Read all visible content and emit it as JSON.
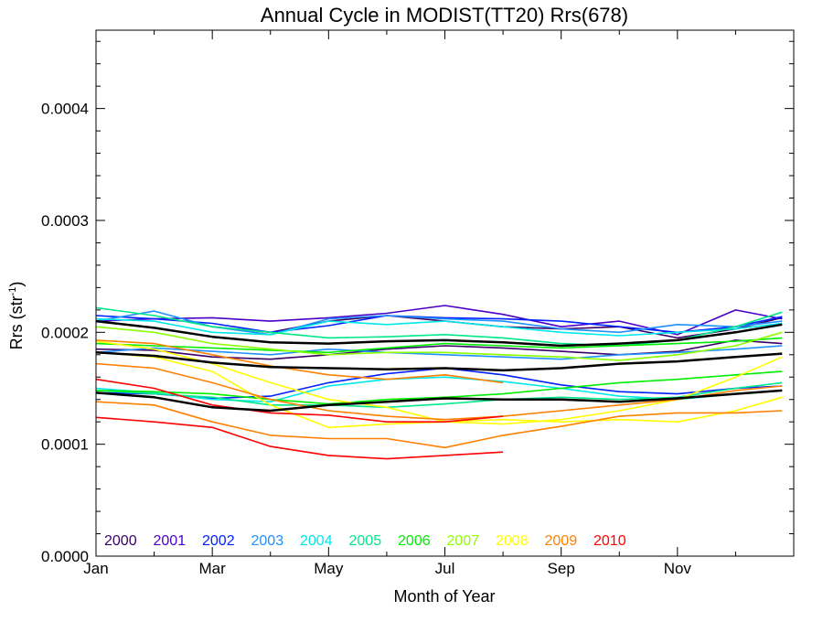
{
  "chart_data": {
    "type": "line",
    "title": "Annual Cycle in MODIST(TT20) Rrs(678)",
    "xlabel": "Month of Year",
    "ylabel_main": "Rrs (str",
    "ylabel_sup": "-1",
    "ylabel_close": ")",
    "xlim": [
      0,
      12
    ],
    "ylim": [
      0,
      0.00047
    ],
    "x_ticks": [
      {
        "v": 0,
        "label": "Jan"
      },
      {
        "v": 2,
        "label": "Mar"
      },
      {
        "v": 4,
        "label": "May"
      },
      {
        "v": 6,
        "label": "Jul"
      },
      {
        "v": 8,
        "label": "Sep"
      },
      {
        "v": 10,
        "label": "Nov"
      }
    ],
    "y_ticks": [
      {
        "v": 0,
        "label": "0.0000"
      },
      {
        "v": 0.0001,
        "label": "0.0001"
      },
      {
        "v": 0.0002,
        "label": "0.0002"
      },
      {
        "v": 0.0003,
        "label": "0.0003"
      },
      {
        "v": 0.0004,
        "label": "0.0004"
      }
    ],
    "legend": [
      {
        "name": "2000",
        "color": "#3a0066"
      },
      {
        "name": "2001",
        "color": "#4b00c8"
      },
      {
        "name": "2002",
        "color": "#0020ff"
      },
      {
        "name": "2003",
        "color": "#1e90ff"
      },
      {
        "name": "2004",
        "color": "#00e8e8"
      },
      {
        "name": "2005",
        "color": "#00e88a"
      },
      {
        "name": "2006",
        "color": "#00ee00"
      },
      {
        "name": "2007",
        "color": "#8cff00"
      },
      {
        "name": "2008",
        "color": "#ffff00"
      },
      {
        "name": "2009",
        "color": "#ff8000"
      },
      {
        "name": "2010",
        "color": "#ff0000"
      }
    ],
    "series": [
      {
        "color": "#3a0066",
        "x": [
          2,
          3,
          4,
          5,
          6,
          7,
          8,
          9,
          10,
          11,
          11.8
        ],
        "values": [
          0.000205,
          0.0002,
          0.00021,
          0.000215,
          0.00021,
          0.000205,
          0.000203,
          0.000205,
          0.000195,
          0.000203,
          0.000213
        ]
      },
      {
        "color": "#3a0066",
        "x": [
          0,
          1,
          2,
          3,
          4,
          5,
          6,
          7,
          8,
          9,
          10,
          11,
          11.8
        ],
        "values": [
          0.000185,
          0.000184,
          0.000178,
          0.000176,
          0.00018,
          0.000185,
          0.000188,
          0.000186,
          0.000183,
          0.00018,
          0.000183,
          0.000193,
          0.00019
        ]
      },
      {
        "color": "#4b00c8",
        "x": [
          0,
          1,
          2,
          3,
          4,
          5,
          6,
          7,
          8,
          9,
          10,
          11,
          11.8
        ],
        "values": [
          0.00021,
          0.000212,
          0.000213,
          0.00021,
          0.000213,
          0.000217,
          0.000224,
          0.000216,
          0.000205,
          0.00021,
          0.000198,
          0.00022,
          0.000212
        ]
      },
      {
        "color": "#0020ff",
        "x": [
          0,
          1,
          2,
          3,
          4,
          5,
          6,
          7,
          8,
          9,
          10,
          11,
          11.8
        ],
        "values": [
          0.000215,
          0.000212,
          0.000208,
          0.0002,
          0.000206,
          0.000215,
          0.000213,
          0.000212,
          0.00021,
          0.000205,
          0.0002,
          0.000205,
          0.000214
        ]
      },
      {
        "color": "#0020ff",
        "x": [
          0,
          1,
          2,
          3,
          4,
          5,
          6,
          7,
          8,
          9,
          10,
          11,
          11.8
        ],
        "values": [
          0.000146,
          0.000145,
          0.000141,
          0.000143,
          0.000155,
          0.000163,
          0.000168,
          0.000162,
          0.000153,
          0.000147,
          0.000145,
          0.00015,
          0.000152
        ]
      },
      {
        "color": "#1e90ff",
        "x": [
          0,
          1,
          2,
          3,
          4,
          5,
          6,
          7,
          8,
          9,
          10,
          11,
          11.8
        ],
        "values": [
          0.00021,
          0.000219,
          0.000205,
          0.000198,
          0.000212,
          0.000215,
          0.000212,
          0.00021,
          0.000203,
          0.0002,
          0.000207,
          0.000205,
          0.00021
        ]
      },
      {
        "color": "#1e90ff",
        "x": [
          0,
          1,
          2,
          3,
          4,
          5,
          6,
          7,
          8,
          9,
          10,
          11,
          11.8
        ],
        "values": [
          0.000182,
          0.000186,
          0.000183,
          0.00018,
          0.000185,
          0.000182,
          0.00018,
          0.000178,
          0.000176,
          0.00018,
          0.000182,
          0.000185,
          0.000188
        ]
      },
      {
        "color": "#00e8e8",
        "x": [
          0,
          1,
          2,
          3,
          4,
          5,
          6,
          7,
          8,
          9,
          10,
          11,
          11.8
        ],
        "values": [
          0.000212,
          0.00021,
          0.0002,
          0.000198,
          0.00021,
          0.000207,
          0.00021,
          0.000205,
          0.0002,
          0.000197,
          0.0002,
          0.000203,
          0.000208
        ]
      },
      {
        "color": "#00e8e8",
        "x": [
          0,
          1,
          2,
          3,
          4,
          5,
          6,
          7,
          8,
          9,
          10,
          11,
          11.8
        ],
        "values": [
          0.00015,
          0.000146,
          0.00014,
          0.000138,
          0.000152,
          0.000158,
          0.00016,
          0.000156,
          0.00015,
          0.000143,
          0.00014,
          0.000145,
          0.000148
        ]
      },
      {
        "color": "#00e88a",
        "x": [
          0,
          1,
          2,
          3,
          4,
          5,
          6,
          7,
          8,
          9,
          10,
          11,
          11.8
        ],
        "values": [
          0.000222,
          0.000215,
          0.000205,
          0.0002,
          0.000195,
          0.000196,
          0.000198,
          0.000195,
          0.00019,
          0.000188,
          0.000193,
          0.000205,
          0.000218
        ]
      },
      {
        "color": "#00e88a",
        "x": [
          0,
          1,
          2,
          3,
          4,
          5,
          6,
          7,
          8,
          9,
          10,
          11,
          11.8
        ],
        "values": [
          0.000148,
          0.000145,
          0.000142,
          0.000135,
          0.000135,
          0.000133,
          0.000136,
          0.00014,
          0.000142,
          0.00014,
          0.000142,
          0.00015,
          0.000155
        ]
      },
      {
        "color": "#00ee00",
        "x": [
          0,
          1,
          2,
          3,
          4,
          5,
          6,
          7,
          8,
          9,
          10,
          11,
          11.8
        ],
        "values": [
          0.00019,
          0.000188,
          0.000186,
          0.000184,
          0.000182,
          0.000186,
          0.00019,
          0.000188,
          0.000186,
          0.000188,
          0.00019,
          0.000192,
          0.000195
        ]
      },
      {
        "color": "#00ee00",
        "x": [
          0,
          1,
          2,
          3,
          4,
          5,
          6,
          7,
          8,
          9,
          10,
          11,
          11.8
        ],
        "values": [
          0.000148,
          0.000147,
          0.000145,
          0.00014,
          0.000136,
          0.00014,
          0.000142,
          0.000145,
          0.00015,
          0.000155,
          0.000158,
          0.000162,
          0.000165
        ]
      },
      {
        "color": "#8cff00",
        "x": [
          0,
          1,
          2,
          3,
          4,
          5,
          6,
          7,
          8,
          9,
          10,
          11,
          11.8
        ],
        "values": [
          0.000205,
          0.0002,
          0.00019,
          0.000185,
          0.00018,
          0.000182,
          0.000182,
          0.00018,
          0.000178,
          0.000175,
          0.00018,
          0.000188,
          0.0002
        ]
      },
      {
        "color": "#ffff00",
        "x": [
          0,
          1,
          2,
          3,
          4,
          5,
          6,
          7,
          8,
          9,
          10,
          11,
          11.8
        ],
        "values": [
          0.000192,
          0.000185,
          0.000172,
          0.000155,
          0.00014,
          0.000133,
          0.00012,
          0.000122,
          0.00012,
          0.000122,
          0.00012,
          0.00013,
          0.000142
        ]
      },
      {
        "color": "#ffff00",
        "x": [
          0,
          1,
          2,
          3,
          4,
          5,
          6,
          7,
          8,
          9,
          10,
          11,
          11.8
        ],
        "values": [
          0.000182,
          0.000178,
          0.000165,
          0.000135,
          0.000115,
          0.000118,
          0.00012,
          0.000118,
          0.000122,
          0.00013,
          0.00014,
          0.00016,
          0.000178
        ]
      },
      {
        "color": "#ff8000",
        "x": [
          0,
          1,
          2,
          3,
          4,
          5,
          6,
          7,
          8,
          9,
          10,
          11,
          11.8
        ],
        "values": [
          0.000172,
          0.000168,
          0.000155,
          0.00014,
          0.00013,
          0.000125,
          0.000122,
          0.000125,
          0.00013,
          0.000135,
          0.00014,
          0.000148,
          0.000152
        ]
      },
      {
        "color": "#ff8000",
        "x": [
          0,
          1,
          2,
          3,
          4,
          5,
          6,
          7,
          8,
          9,
          10,
          11,
          11.8
        ],
        "values": [
          0.000138,
          0.000135,
          0.00012,
          0.000108,
          0.000105,
          0.000105,
          9.7e-05,
          0.000108,
          0.000116,
          0.000125,
          0.000128,
          0.000128,
          0.00013
        ]
      },
      {
        "color": "#ff8000",
        "x": [
          0,
          1,
          2,
          3,
          4,
          5,
          6,
          7
        ],
        "values": [
          0.000193,
          0.00019,
          0.00018,
          0.00017,
          0.000162,
          0.000158,
          0.000162,
          0.000155
        ]
      },
      {
        "color": "#ff0000",
        "x": [
          0,
          1,
          2,
          3,
          4,
          5,
          6,
          7
        ],
        "values": [
          0.000158,
          0.00015,
          0.000135,
          0.000128,
          0.000126,
          0.00012,
          0.00012,
          0.000125
        ]
      },
      {
        "color": "#ff0000",
        "x": [
          0,
          1,
          2,
          3,
          4,
          5,
          6,
          7
        ],
        "values": [
          0.000124,
          0.00012,
          0.000115,
          9.8e-05,
          9e-05,
          8.7e-05,
          9e-05,
          9.3e-05
        ]
      },
      {
        "color": "#000000",
        "width": 2.5,
        "x": [
          0,
          1,
          2,
          3,
          4,
          5,
          6,
          7,
          8,
          9,
          10,
          11,
          11.8
        ],
        "values": [
          0.00021,
          0.000204,
          0.000196,
          0.000191,
          0.00019,
          0.000192,
          0.000193,
          0.000191,
          0.000188,
          0.00019,
          0.000193,
          0.0002,
          0.000207
        ]
      },
      {
        "color": "#000000",
        "width": 2.5,
        "x": [
          0,
          1,
          2,
          3,
          4,
          5,
          6,
          7,
          8,
          9,
          10,
          11,
          11.8
        ],
        "values": [
          0.000182,
          0.000179,
          0.000173,
          0.000169,
          0.000168,
          0.000167,
          0.000168,
          0.000166,
          0.000168,
          0.000172,
          0.000174,
          0.000178,
          0.000181
        ]
      },
      {
        "color": "#000000",
        "width": 2.5,
        "x": [
          0,
          1,
          2,
          3,
          4,
          5,
          6,
          7,
          8,
          9,
          10,
          11,
          11.8
        ],
        "values": [
          0.000146,
          0.000142,
          0.000133,
          0.00013,
          0.000135,
          0.000138,
          0.000141,
          0.00014,
          0.00014,
          0.000138,
          0.000141,
          0.000145,
          0.000148
        ]
      }
    ]
  }
}
